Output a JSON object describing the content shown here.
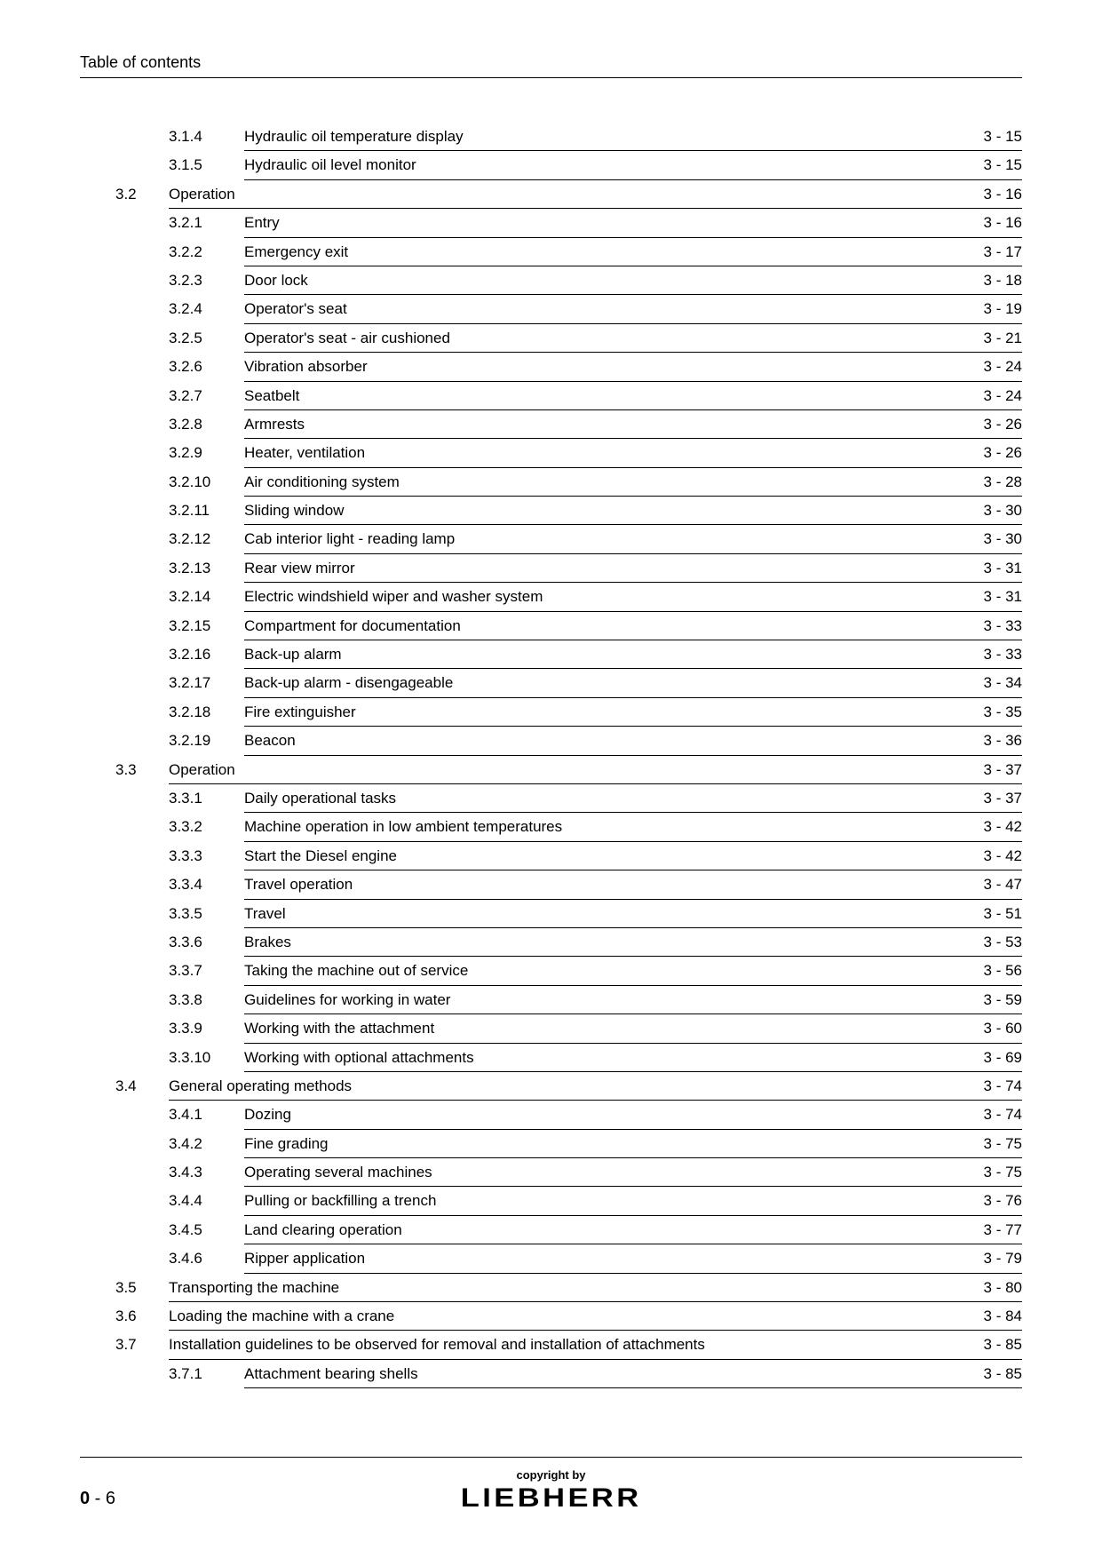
{
  "header": {
    "title": "Table of contents"
  },
  "toc": [
    {
      "section": "",
      "subsection": "3.1.4",
      "title": "Hydraulic oil temperature display",
      "page": "3 - 15",
      "type": "sub"
    },
    {
      "section": "",
      "subsection": "3.1.5",
      "title": "Hydraulic oil level monitor",
      "page": "3 - 15",
      "type": "sub"
    },
    {
      "section": "3.2",
      "subsection": "",
      "title": "Operation",
      "page": "3 - 16",
      "type": "section"
    },
    {
      "section": "",
      "subsection": "3.2.1",
      "title": "Entry",
      "page": "3 - 16",
      "type": "sub"
    },
    {
      "section": "",
      "subsection": "3.2.2",
      "title": "Emergency exit",
      "page": "3 - 17",
      "type": "sub"
    },
    {
      "section": "",
      "subsection": "3.2.3",
      "title": "Door lock",
      "page": "3 - 18",
      "type": "sub"
    },
    {
      "section": "",
      "subsection": "3.2.4",
      "title": "Operator's seat",
      "page": "3 - 19",
      "type": "sub"
    },
    {
      "section": "",
      "subsection": "3.2.5",
      "title": "Operator's seat - air cushioned",
      "page": "3 - 21",
      "type": "sub"
    },
    {
      "section": "",
      "subsection": "3.2.6",
      "title": "Vibration absorber",
      "page": "3 - 24",
      "type": "sub"
    },
    {
      "section": "",
      "subsection": "3.2.7",
      "title": "Seatbelt",
      "page": "3 - 24",
      "type": "sub"
    },
    {
      "section": "",
      "subsection": "3.2.8",
      "title": "Armrests",
      "page": "3 - 26",
      "type": "sub"
    },
    {
      "section": "",
      "subsection": "3.2.9",
      "title": "Heater, ventilation",
      "page": "3 - 26",
      "type": "sub"
    },
    {
      "section": "",
      "subsection": "3.2.10",
      "title": "Air conditioning system",
      "page": "3 - 28",
      "type": "sub"
    },
    {
      "section": "",
      "subsection": "3.2.11",
      "title": "Sliding window",
      "page": "3 - 30",
      "type": "sub"
    },
    {
      "section": "",
      "subsection": "3.2.12",
      "title": "Cab interior light - reading lamp",
      "page": "3 - 30",
      "type": "sub"
    },
    {
      "section": "",
      "subsection": "3.2.13",
      "title": "Rear view mirror",
      "page": "3 - 31",
      "type": "sub"
    },
    {
      "section": "",
      "subsection": "3.2.14",
      "title": "Electric windshield wiper and washer system",
      "page": "3 - 31",
      "type": "sub"
    },
    {
      "section": "",
      "subsection": "3.2.15",
      "title": "Compartment for documentation",
      "page": "3 - 33",
      "type": "sub"
    },
    {
      "section": "",
      "subsection": "3.2.16",
      "title": "Back-up alarm",
      "page": "3 - 33",
      "type": "sub"
    },
    {
      "section": "",
      "subsection": "3.2.17",
      "title": "Back-up alarm - disengageable",
      "page": "3 - 34",
      "type": "sub"
    },
    {
      "section": "",
      "subsection": "3.2.18",
      "title": "Fire extinguisher",
      "page": "3 - 35",
      "type": "sub"
    },
    {
      "section": "",
      "subsection": "3.2.19",
      "title": "Beacon",
      "page": "3 - 36",
      "type": "sub"
    },
    {
      "section": "3.3",
      "subsection": "",
      "title": "Operation",
      "page": "3 - 37",
      "type": "section"
    },
    {
      "section": "",
      "subsection": "3.3.1",
      "title": "Daily operational tasks",
      "page": "3 - 37",
      "type": "sub"
    },
    {
      "section": "",
      "subsection": "3.3.2",
      "title": "Machine operation in low ambient temperatures",
      "page": "3 - 42",
      "type": "sub"
    },
    {
      "section": "",
      "subsection": "3.3.3",
      "title": "Start the Diesel engine",
      "page": "3 - 42",
      "type": "sub"
    },
    {
      "section": "",
      "subsection": "3.3.4",
      "title": "Travel operation",
      "page": "3 - 47",
      "type": "sub"
    },
    {
      "section": "",
      "subsection": "3.3.5",
      "title": "Travel",
      "page": "3 - 51",
      "type": "sub"
    },
    {
      "section": "",
      "subsection": "3.3.6",
      "title": "Brakes",
      "page": "3 - 53",
      "type": "sub"
    },
    {
      "section": "",
      "subsection": "3.3.7",
      "title": "Taking the machine out of service",
      "page": "3 - 56",
      "type": "sub"
    },
    {
      "section": "",
      "subsection": "3.3.8",
      "title": "Guidelines for working in water",
      "page": "3 - 59",
      "type": "sub"
    },
    {
      "section": "",
      "subsection": "3.3.9",
      "title": "Working with the attachment",
      "page": "3 - 60",
      "type": "sub"
    },
    {
      "section": "",
      "subsection": "3.3.10",
      "title": "Working with optional attachments",
      "page": "3 - 69",
      "type": "sub"
    },
    {
      "section": "3.4",
      "subsection": "",
      "title": "General operating methods",
      "page": "3 - 74",
      "type": "section"
    },
    {
      "section": "",
      "subsection": "3.4.1",
      "title": "Dozing",
      "page": "3 - 74",
      "type": "sub"
    },
    {
      "section": "",
      "subsection": "3.4.2",
      "title": "Fine grading",
      "page": "3 - 75",
      "type": "sub"
    },
    {
      "section": "",
      "subsection": "3.4.3",
      "title": "Operating several machines",
      "page": "3 - 75",
      "type": "sub"
    },
    {
      "section": "",
      "subsection": "3.4.4",
      "title": "Pulling or backfilling a trench",
      "page": "3 - 76",
      "type": "sub"
    },
    {
      "section": "",
      "subsection": "3.4.5",
      "title": "Land clearing operation",
      "page": "3 - 77",
      "type": "sub"
    },
    {
      "section": "",
      "subsection": "3.4.6",
      "title": "Ripper application",
      "page": "3 - 79",
      "type": "sub"
    },
    {
      "section": "3.5",
      "subsection": "",
      "title": "Transporting the machine",
      "page": "3 - 80",
      "type": "section"
    },
    {
      "section": "3.6",
      "subsection": "",
      "title": "Loading the machine with a crane",
      "page": "3 - 84",
      "type": "section"
    },
    {
      "section": "3.7",
      "subsection": "",
      "title": "Installation guidelines to be observed for removal and installation of attachments",
      "page": "3 - 85",
      "type": "section"
    },
    {
      "section": "",
      "subsection": "3.7.1",
      "title": "Attachment bearing shells",
      "page": "3 - 85",
      "type": "sub"
    }
  ],
  "footer": {
    "copyright": "copyright by",
    "brand": "LIEBHERR",
    "page_bold": "0",
    "page_rest": " - 6"
  }
}
